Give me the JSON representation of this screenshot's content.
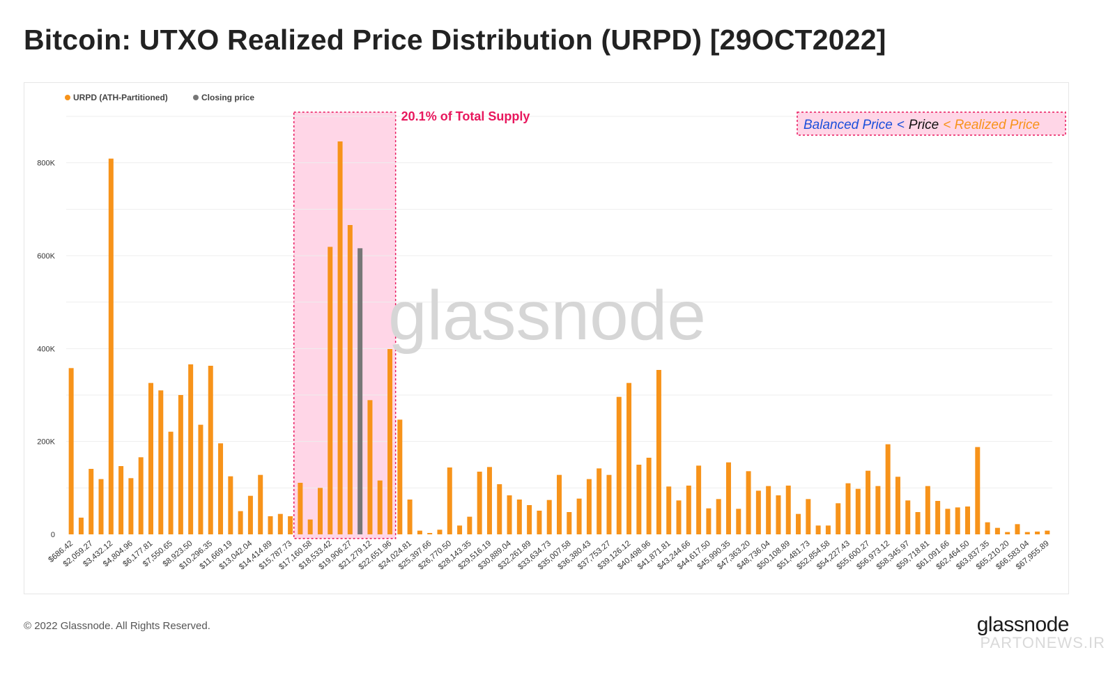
{
  "title": "Bitcoin: UTXO Realized Price Distribution (URPD) [29OCT2022]",
  "footer": {
    "copyright": "© 2022 Glassnode. All Rights Reserved.",
    "logo": "glassnode",
    "source_mark": "PARTONEWS.IR"
  },
  "watermark": "glassnode",
  "colors": {
    "bar": "#f7931a",
    "closing": "#777777",
    "highlight_fill": "#ffd6e7",
    "highlight_border": "#e8175d",
    "balanced": "#1a4fdb",
    "realized": "#f7931a"
  },
  "chart_data": {
    "type": "bar",
    "title": "Bitcoin: UTXO Realized Price Distribution (URPD) [29OCT2022]",
    "legend": {
      "placement": "top-left",
      "items": [
        {
          "name": "URPD (ATH-Partitioned)",
          "color": "#f7931a"
        },
        {
          "name": "Closing price",
          "color": "#777777"
        }
      ]
    },
    "ylim": [
      0,
      900000
    ],
    "y_ticks": [
      0,
      200000,
      400000,
      600000,
      800000
    ],
    "y_tick_labels": [
      "0",
      "200K",
      "400K",
      "600K",
      "800K"
    ],
    "grid": true,
    "x_tick_labels": [
      "$686.42",
      "$2,059.27",
      "$3,432.12",
      "$4,804.96",
      "$6,177.81",
      "$7,550.65",
      "$8,923.50",
      "$10,296.35",
      "$11,669.19",
      "$13,042.04",
      "$14,414.89",
      "$15,787.73",
      "$17,160.58",
      "$18,533.42",
      "$19,906.27",
      "$21,279.12",
      "$22,651.96",
      "$24,024.81",
      "$25,397.66",
      "$26,770.50",
      "$28,143.35",
      "$29,516.19",
      "$30,889.04",
      "$32,261.89",
      "$33,634.73",
      "$35,007.58",
      "$36,380.43",
      "$37,753.27",
      "$39,126.12",
      "$40,498.96",
      "$41,871.81",
      "$43,244.66",
      "$44,617.50",
      "$45,990.35",
      "$47,363.20",
      "$48,736.04",
      "$50,108.89",
      "$51,481.73",
      "$52,854.58",
      "$54,227.43",
      "$55,600.27",
      "$56,973.12",
      "$58,345.97",
      "$59,718.81",
      "$61,091.66",
      "$62,464.50",
      "$63,837.35",
      "$65,210.20",
      "$66,583.04",
      "$67,955.89"
    ],
    "values": [
      358000,
      36000,
      141000,
      119000,
      809000,
      147000,
      121000,
      166000,
      326000,
      310000,
      221000,
      300000,
      366000,
      236000,
      363000,
      196000,
      125000,
      50000,
      83000,
      128000,
      39000,
      44000,
      39000,
      111000,
      32000,
      100000,
      619000,
      846000,
      666000,
      616000,
      289000,
      116000,
      399000,
      247000,
      75000,
      8000,
      3000,
      10000,
      144000,
      19000,
      38000,
      135000,
      145000,
      108000,
      84000,
      75000,
      63000,
      51000,
      74000,
      128000,
      48000,
      77000,
      119000,
      142000,
      128000,
      296000,
      326000,
      150000,
      165000,
      354000,
      103000,
      73000,
      105000,
      148000,
      56000,
      76000,
      155000,
      55000,
      136000,
      94000,
      104000,
      84000,
      105000,
      44000,
      76000,
      19000,
      19000,
      67000,
      110000,
      98000,
      137000,
      104000,
      194000,
      124000,
      73000,
      48000,
      104000,
      72000,
      55000,
      58000,
      60000,
      188000,
      26000,
      14000,
      5000,
      22000,
      5000,
      6000,
      8000
    ],
    "closing_price_index": 29,
    "annotations": [
      {
        "text": "20.1% of Total Supply",
        "range_start_index": 23,
        "range_end_index": 32
      }
    ],
    "label_box": {
      "balanced": "Balanced Price",
      "sep1": "<",
      "price": "Price",
      "realized": "< Realized Price"
    }
  }
}
